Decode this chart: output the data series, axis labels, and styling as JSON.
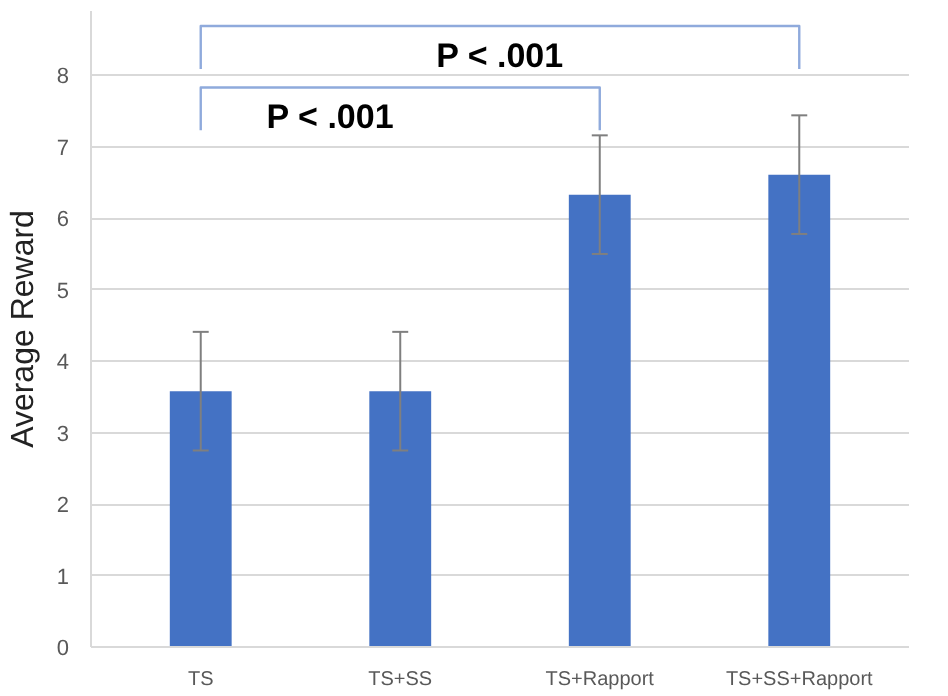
{
  "chart_data": {
    "type": "bar",
    "ylabel": "Average Reward",
    "categories": [
      "TS",
      "TS+SS",
      "TS+Rapport",
      "TS+SS+Rapport"
    ],
    "values": [
      3.58,
      3.58,
      6.33,
      6.61
    ],
    "errors": [
      0.83,
      0.83,
      0.83,
      0.83
    ],
    "color": "#4472c4",
    "ylim": [
      0,
      8.9
    ],
    "yticks": [
      0,
      1,
      2,
      3,
      4,
      5,
      6,
      7,
      8
    ],
    "grid": "y",
    "annotations": [
      "P < .001",
      "P < .001"
    ]
  }
}
